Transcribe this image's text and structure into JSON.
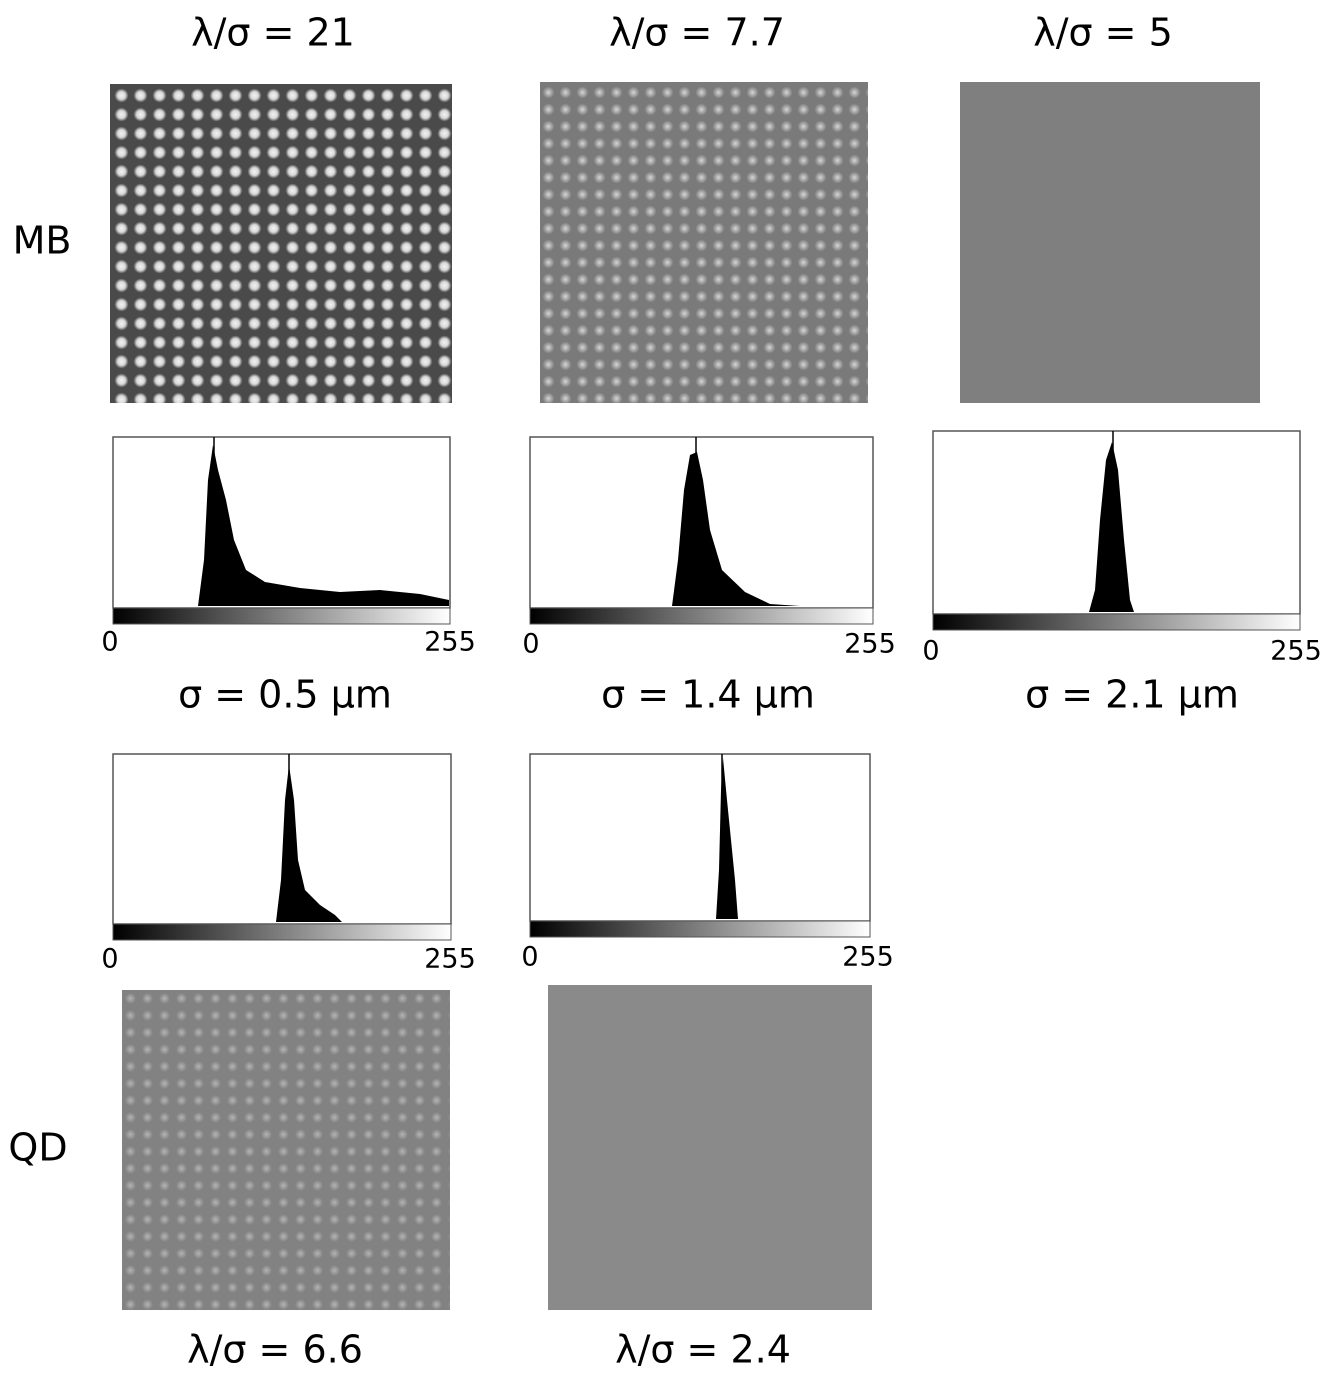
{
  "top_labels": [
    "λ/σ = 21",
    "λ/σ = 7.7",
    "λ/σ = 5"
  ],
  "row_labels": {
    "mb": "MB",
    "qd": "QD"
  },
  "histograms": [
    {
      "min_label": "0",
      "max_label": "255"
    },
    {
      "min_label": "0",
      "max_label": "255"
    },
    {
      "min_label": "0",
      "max_label": "255"
    },
    {
      "min_label": "0",
      "max_label": "255"
    },
    {
      "min_label": "0",
      "max_label": "255"
    }
  ],
  "sigma_labels": [
    "σ = 0.5 μm",
    "σ = 1.4 μm",
    "σ = 2.1 μm"
  ],
  "bottom_labels": [
    "λ/σ = 6.6",
    "λ/σ = 2.4"
  ]
}
